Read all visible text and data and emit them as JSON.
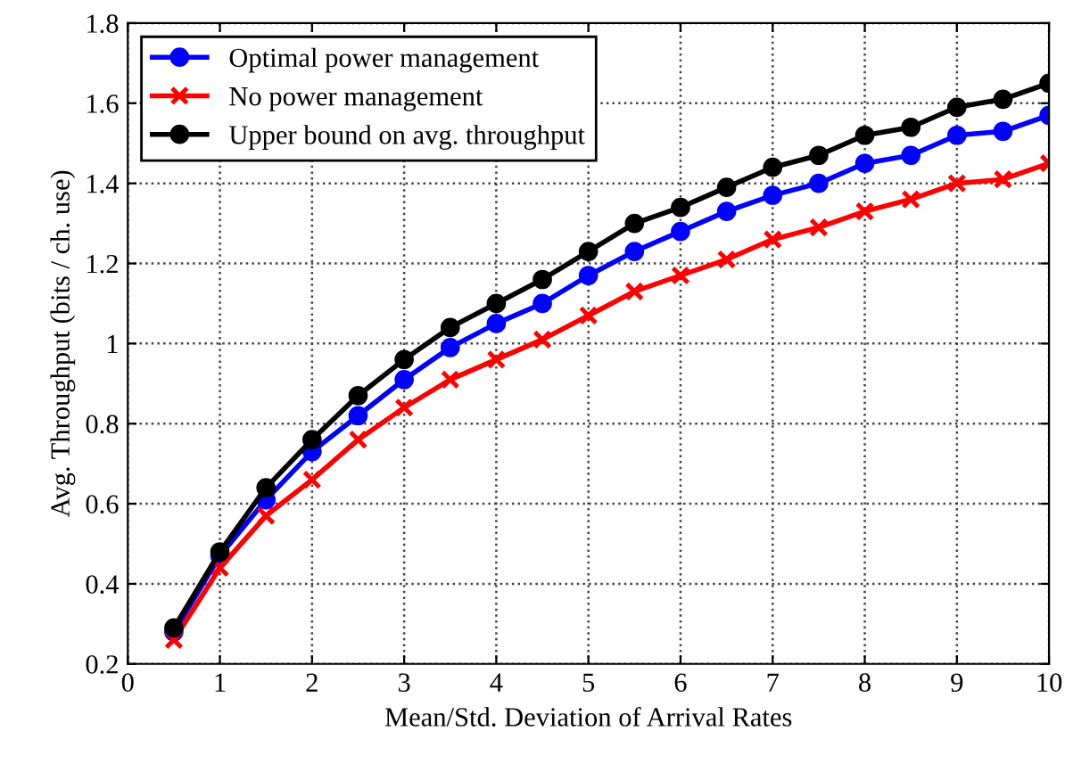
{
  "chart_data": {
    "type": "line",
    "xlabel": "Mean/Std. Deviation of Arrival Rates",
    "ylabel": "Avg. Throughput (bits / ch. use)",
    "x": [
      0.5,
      1,
      1.5,
      2,
      2.5,
      3,
      3.5,
      4,
      4.5,
      5,
      5.5,
      6,
      6.5,
      7,
      7.5,
      8,
      8.5,
      9,
      9.5,
      10
    ],
    "series": [
      {
        "name": "Optimal power management",
        "color": "#0000ff",
        "marker": "circle",
        "values": [
          0.28,
          0.47,
          0.61,
          0.73,
          0.82,
          0.91,
          0.99,
          1.05,
          1.1,
          1.17,
          1.23,
          1.28,
          1.33,
          1.37,
          1.4,
          1.45,
          1.47,
          1.52,
          1.53,
          1.57
        ]
      },
      {
        "name": "No power management",
        "color": "#ff0000",
        "marker": "cross",
        "values": [
          0.26,
          0.44,
          0.57,
          0.66,
          0.76,
          0.84,
          0.91,
          0.96,
          1.01,
          1.07,
          1.13,
          1.17,
          1.21,
          1.26,
          1.29,
          1.33,
          1.36,
          1.4,
          1.41,
          1.45
        ]
      },
      {
        "name": "Upper bound on avg. throughput",
        "color": "#000000",
        "marker": "circle",
        "values": [
          0.29,
          0.48,
          0.64,
          0.76,
          0.87,
          0.96,
          1.04,
          1.1,
          1.16,
          1.23,
          1.3,
          1.34,
          1.39,
          1.44,
          1.47,
          1.52,
          1.54,
          1.59,
          1.61,
          1.65
        ]
      }
    ],
    "xlim": [
      0,
      10
    ],
    "xticks": [
      0,
      1,
      2,
      3,
      4,
      5,
      6,
      7,
      8,
      9,
      10
    ],
    "ylim": [
      0.2,
      1.8
    ],
    "yticks": [
      0.2,
      0.4,
      0.6,
      0.8,
      1,
      1.2,
      1.4,
      1.6,
      1.8
    ],
    "grid": true,
    "legend": "top left",
    "line_style": "solid"
  }
}
